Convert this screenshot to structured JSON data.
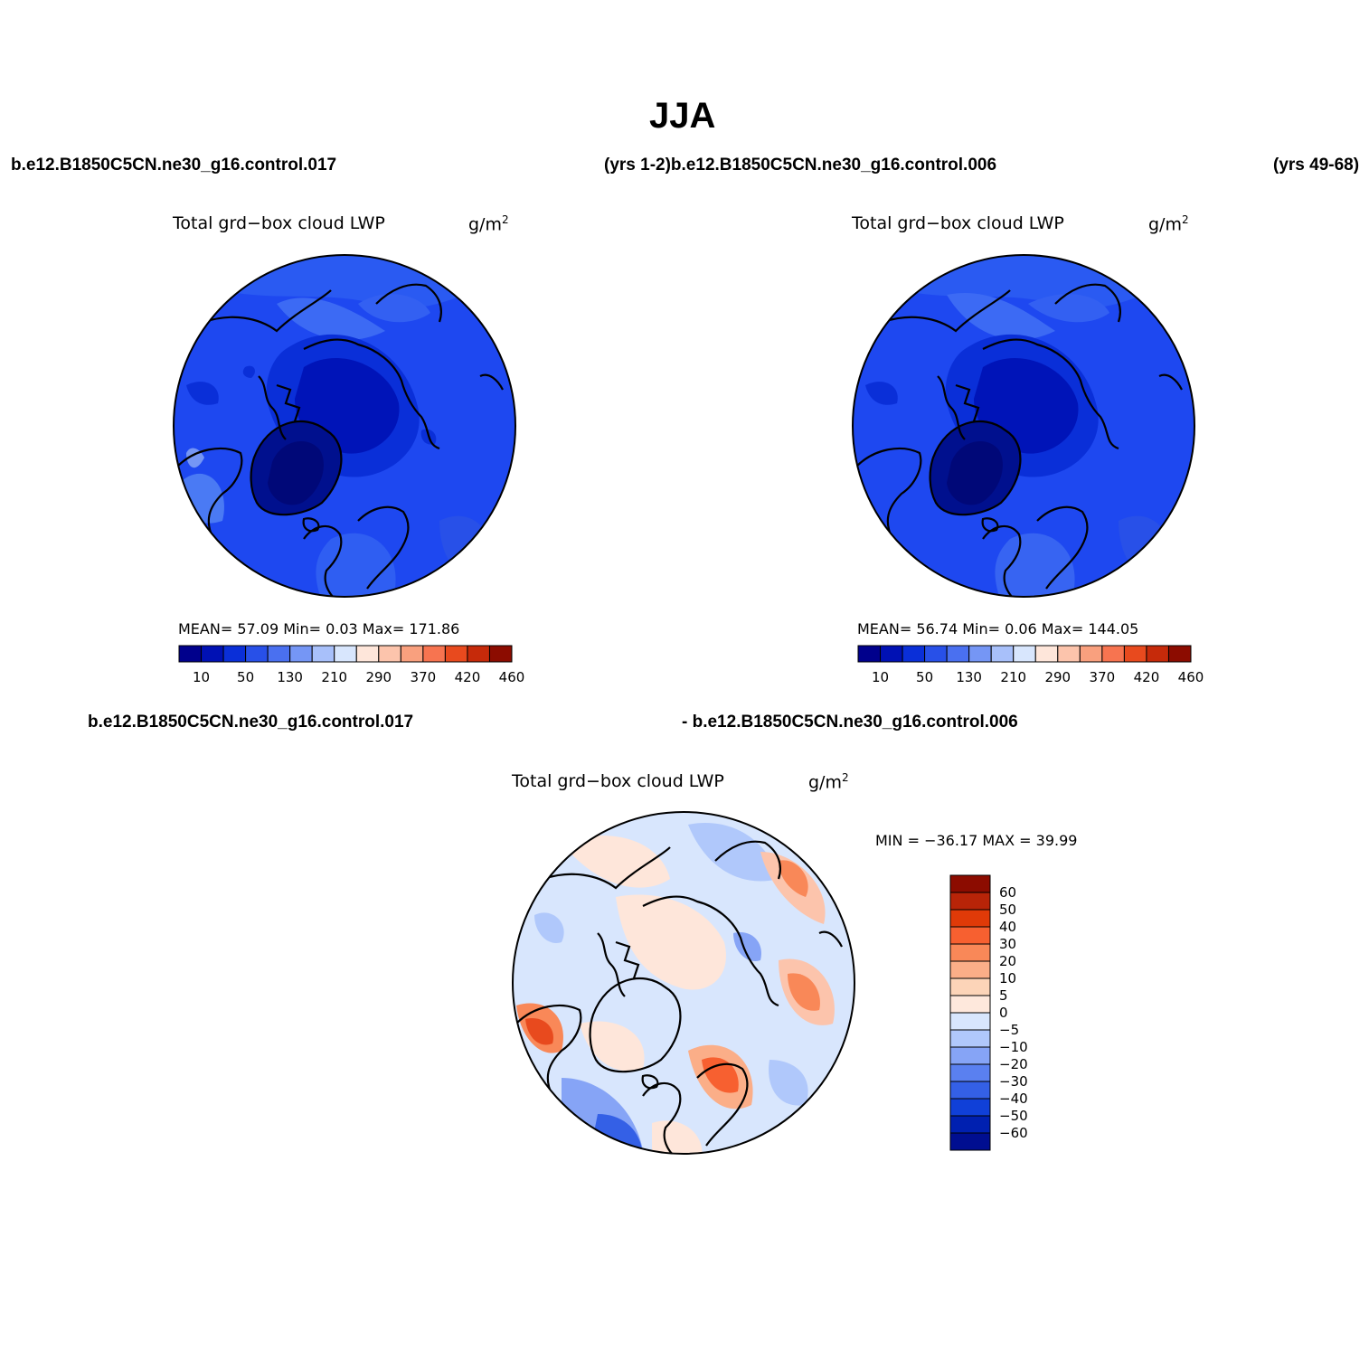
{
  "title": "JJA",
  "case_labels": {
    "top_left": "b.e12.B1850C5CN.ne30_g16.control.017",
    "top_middle": "(yrs 1-2)b.e12.B1850C5CN.ne30_g16.control.006",
    "top_right": "(yrs 49-68)",
    "diff_left": "b.e12.B1850C5CN.ne30_g16.control.017",
    "diff_right": "- b.e12.B1850C5CN.ne30_g16.control.006"
  },
  "panels": [
    {
      "variable": "Total grd−box cloud LWP",
      "units_base": "g/m",
      "units_exp": "2",
      "stats": "MEAN=   57.09   Min=     0.03   Max=  171.86"
    },
    {
      "variable": "Total grd−box cloud LWP",
      "units_base": "g/m",
      "units_exp": "2",
      "stats": "MEAN=   56.74   Min=     0.06   Max=  144.05"
    },
    {
      "variable": "Total grd−box cloud LWP",
      "units_base": "g/m",
      "units_exp": "2",
      "minmax": "MIN = −36.17  MAX =   39.99"
    }
  ],
  "colorbar_abs": {
    "colors": [
      "#00008c",
      "#0011b4",
      "#0a2fd8",
      "#2850e8",
      "#4a70f0",
      "#7596f5",
      "#a8c0fa",
      "#d8e6fd",
      "#fee6da",
      "#fcc4ac",
      "#f9a07e",
      "#f77450",
      "#e84a1e",
      "#c62a0a",
      "#8c0c00"
    ],
    "labels": [
      "10",
      "50",
      "130",
      "210",
      "290",
      "370",
      "420",
      "460"
    ]
  },
  "colorbar_diff": {
    "colors": [
      "#8c0c00",
      "#b82408",
      "#e03a08",
      "#f76030",
      "#f98858",
      "#fbae88",
      "#fcd4b8",
      "#fee8dc",
      "#d8e6fd",
      "#b0c8fb",
      "#86a4f6",
      "#5a80f0",
      "#3460e6",
      "#1040d8",
      "#0020b0",
      "#000e90"
    ],
    "labels": [
      "60",
      "50",
      "40",
      "30",
      "20",
      "10",
      "5",
      "0",
      "−5",
      "−10",
      "−20",
      "−30",
      "−40",
      "−50",
      "−60"
    ]
  }
}
